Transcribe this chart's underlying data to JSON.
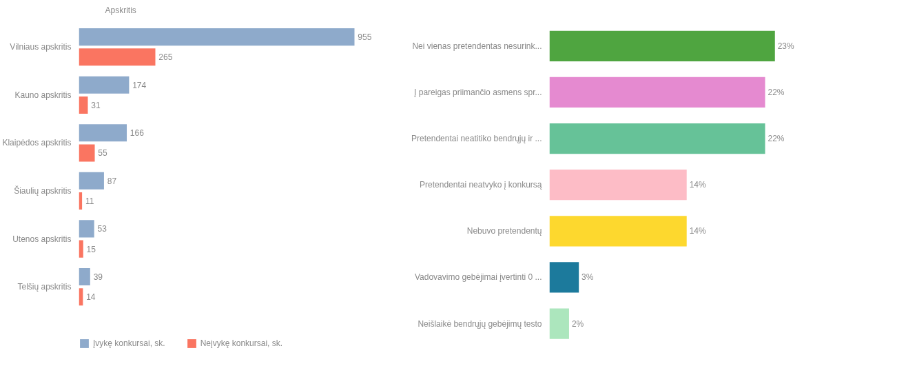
{
  "chart_data": [
    {
      "type": "bar",
      "orientation": "horizontal",
      "ylabel": "Apskritis",
      "categories": [
        "Vilniaus apskritis",
        "Kauno apskritis",
        "Klaipėdos apskritis",
        "Šiaulių apskritis",
        "Utenos apskritis",
        "Telšių apskritis"
      ],
      "series": [
        {
          "name": "Įvykę konkursai, sk.",
          "color": "#8eaacb",
          "values": [
            955,
            174,
            166,
            87,
            53,
            39
          ]
        },
        {
          "name": "Neįvykę konkursai, sk.",
          "color": "#fa7561",
          "values": [
            265,
            31,
            55,
            11,
            15,
            14
          ]
        }
      ],
      "data_labels": true,
      "legend": "bottom left",
      "grid": false
    },
    {
      "type": "bar",
      "orientation": "horizontal",
      "categories": [
        "Nei vienas pretendentas nesurink...",
        "Į pareigas priimančio asmens spr...",
        "Pretendentai neatitiko bendrųjų ir ...",
        "Pretendentai neatvyko į konkursą",
        "Nebuvo pretendentų",
        "Vadovavimo gebėjimai įvertinti 0 ...",
        "Neišlaikė bendrųjų gebėjimų testo"
      ],
      "values": [
        23,
        22,
        22,
        14,
        14,
        3,
        2
      ],
      "value_labels": [
        "23%",
        "22%",
        "22%",
        "14%",
        "14%",
        "3%",
        "2%"
      ],
      "colors": [
        "#4fa540",
        "#e58ad0",
        "#66c298",
        "#fdbcc6",
        "#fdd82e",
        "#1c7a9c",
        "#ace6bd"
      ],
      "grid": false
    }
  ]
}
